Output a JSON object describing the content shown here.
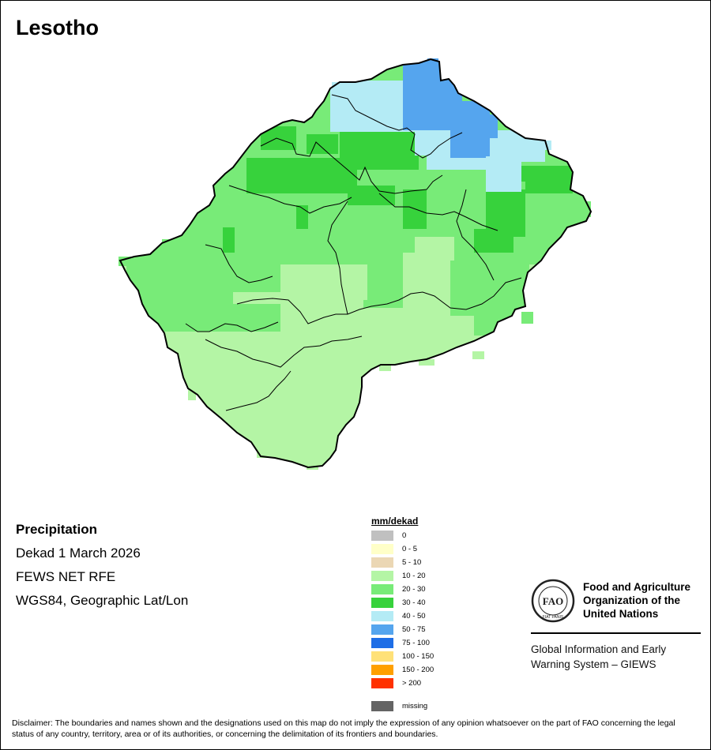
{
  "map": {
    "title": "Lesotho",
    "country": "Lesotho"
  },
  "info": {
    "heading": "Precipitation",
    "period": "Dekad 1 March 2026",
    "source": "FEWS NET RFE",
    "projection": "WGS84, Geographic Lat/Lon"
  },
  "legend": {
    "unit": "mm/dekad",
    "classes": [
      {
        "label": "0",
        "color": "#c0c0c0"
      },
      {
        "label": "0 - 5",
        "color": "#ffffc8"
      },
      {
        "label": "5 - 10",
        "color": "#ebd7b4"
      },
      {
        "label": "10 - 20",
        "color": "#b4f5a5"
      },
      {
        "label": "20 - 30",
        "color": "#78eb78"
      },
      {
        "label": "30 - 40",
        "color": "#37d23c"
      },
      {
        "label": "40 - 50",
        "color": "#b4ebf5"
      },
      {
        "label": "50 - 75",
        "color": "#55a5ee"
      },
      {
        "label": "75 - 100",
        "color": "#1e6ee6"
      },
      {
        "label": "100 - 150",
        "color": "#ffe178"
      },
      {
        "label": "150 - 200",
        "color": "#ffa000"
      },
      {
        "label": "> 200",
        "color": "#ff3200"
      }
    ],
    "missing": {
      "label": "missing",
      "color": "#646464"
    }
  },
  "organization": {
    "logo_text": "FAO",
    "logo_motto": "FIAT PANIS",
    "name": "Food and Agriculture Organization of the United Nations",
    "system": "Global Information and Early Warning System – GIEWS"
  },
  "disclaimer": "Disclaimer: The boundaries and names shown and the designations used on this map do not imply the expression of any opinion whatsoever on the part of FAO concerning the legal status of any country, territory, area or of its authorities, or concerning the delimitation of its frontiers and boundaries."
}
